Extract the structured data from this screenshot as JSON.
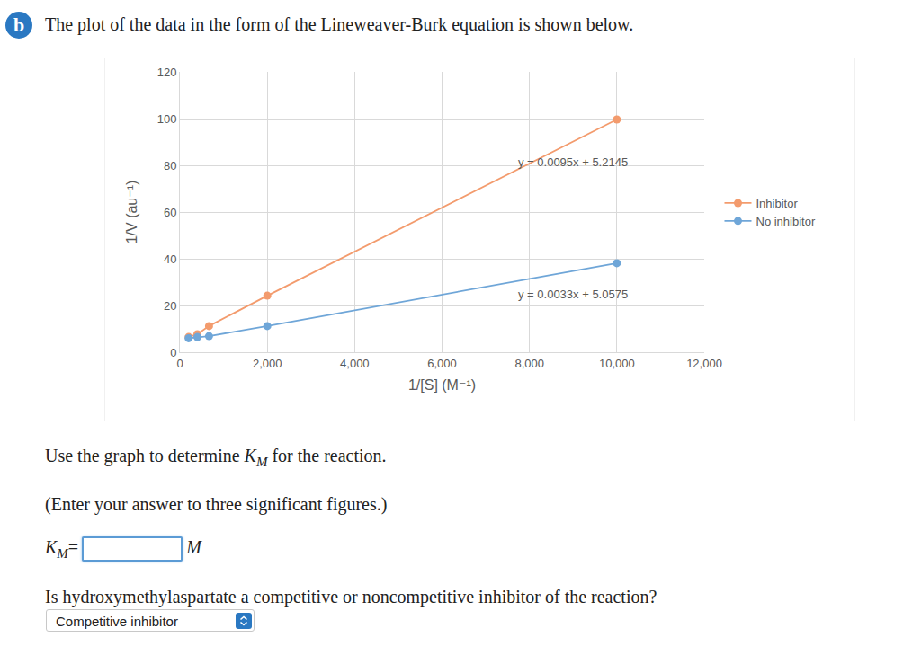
{
  "badge": "b",
  "intro": "The plot of the data in the form of the Lineweaver-Burk equation is shown below.",
  "chart_data": {
    "type": "scatter",
    "x_label": "1/[S] (M⁻¹)",
    "y_label": "1/V (au⁻¹)",
    "x": [
      200,
      400,
      667,
      2000,
      10000
    ],
    "series": [
      {
        "name": "Inhibitor",
        "color": "#f39b6d",
        "values": [
          6.5,
          7.7,
          11.2,
          24.2,
          99.6
        ]
      },
      {
        "name": "No inhibitor",
        "color": "#6fa6d8",
        "values": [
          6.0,
          6.5,
          6.9,
          11.2,
          38.1
        ]
      }
    ],
    "annotations": [
      {
        "text": "y = 0.0095x + 5.2145",
        "x": 10290,
        "y": 81.2
      },
      {
        "text": "y = 0.0033x + 5.0575",
        "x": 10290,
        "y": 25
      }
    ],
    "xlim": [
      0,
      12000
    ],
    "xticks": [
      0,
      {
        "value": 2000,
        "label": "2,000"
      },
      {
        "value": 4000,
        "label": "4,000"
      },
      {
        "value": 6000,
        "label": "6,000"
      },
      {
        "value": 8000,
        "label": "8,000"
      },
      {
        "value": 10000,
        "label": "10,000"
      },
      {
        "value": 12000,
        "label": "12,000"
      }
    ],
    "ylim": [
      0,
      120
    ],
    "yticks": [
      0,
      20,
      40,
      60,
      80,
      100,
      120
    ],
    "grid": true,
    "legend": "right",
    "marker": "circle",
    "line_style": "solid"
  },
  "question1": {
    "before": "Use the graph to determine ",
    "symbol": "K",
    "subscript": "M",
    "after": " for the reaction."
  },
  "note": "(Enter your answer to three significant figures.)",
  "answer_field": {
    "symbol": "K",
    "subscript": "M",
    "equals": "=",
    "unit": "M"
  },
  "question2": "Is hydroxymethylaspartate a competitive or noncompetitive inhibitor of the reaction?",
  "selection": "Competitive inhibitor"
}
